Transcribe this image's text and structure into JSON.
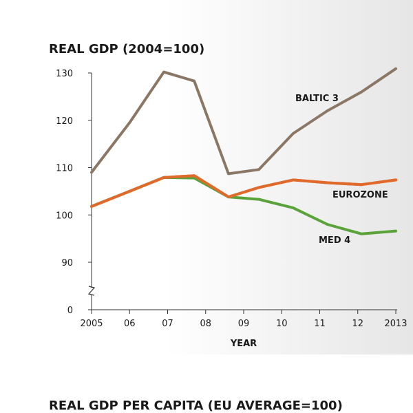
{
  "chart_data": {
    "type": "line",
    "title": "REAL GDP (2004=100)",
    "xlabel": "YEAR",
    "ylabel": "",
    "ylim": [
      0,
      130
    ],
    "y_ticks": [
      0,
      90,
      100,
      110,
      120,
      130
    ],
    "axis_break_below": 90,
    "x_ticks": [
      "2005",
      "06",
      "07",
      "08",
      "09",
      "10",
      "11",
      "12",
      "2013"
    ],
    "grid": false,
    "x": [
      2005,
      2006,
      2007,
      2008,
      2009,
      2010,
      2011,
      2012,
      2013
    ],
    "series": [
      {
        "name": "BALTIC 3",
        "color": "#8b7765",
        "x": [
          2005,
          2006,
          2006.9,
          2007.7,
          2008.6,
          2009.4,
          2010.3,
          2011.2,
          2012.1,
          2013
        ],
        "values": [
          109,
          119.5,
          130.2,
          128.3,
          108.7,
          109.6,
          117.2,
          122,
          126,
          130.9
        ]
      },
      {
        "name": "EUROZONE",
        "color": "#e06a2b",
        "x": [
          2005,
          2006,
          2006.9,
          2007.7,
          2008.6,
          2009.4,
          2010.3,
          2011.2,
          2012.1,
          2013
        ],
        "values": [
          101.8,
          105,
          107.9,
          108.3,
          103.8,
          105.8,
          107.4,
          106.8,
          106.4,
          107.4
        ]
      },
      {
        "name": "MED 4",
        "color": "#5aa33a",
        "x": [
          2005,
          2006,
          2006.9,
          2007.7,
          2008.6,
          2009.4,
          2010.3,
          2011.2,
          2012.1,
          2013
        ],
        "values": [
          101.8,
          105,
          107.9,
          107.8,
          103.8,
          103.3,
          101.5,
          98,
          96,
          96.6
        ]
      }
    ]
  },
  "next_chart": {
    "title": "REAL GDP PER CAPITA (EU AVERAGE=100)"
  }
}
